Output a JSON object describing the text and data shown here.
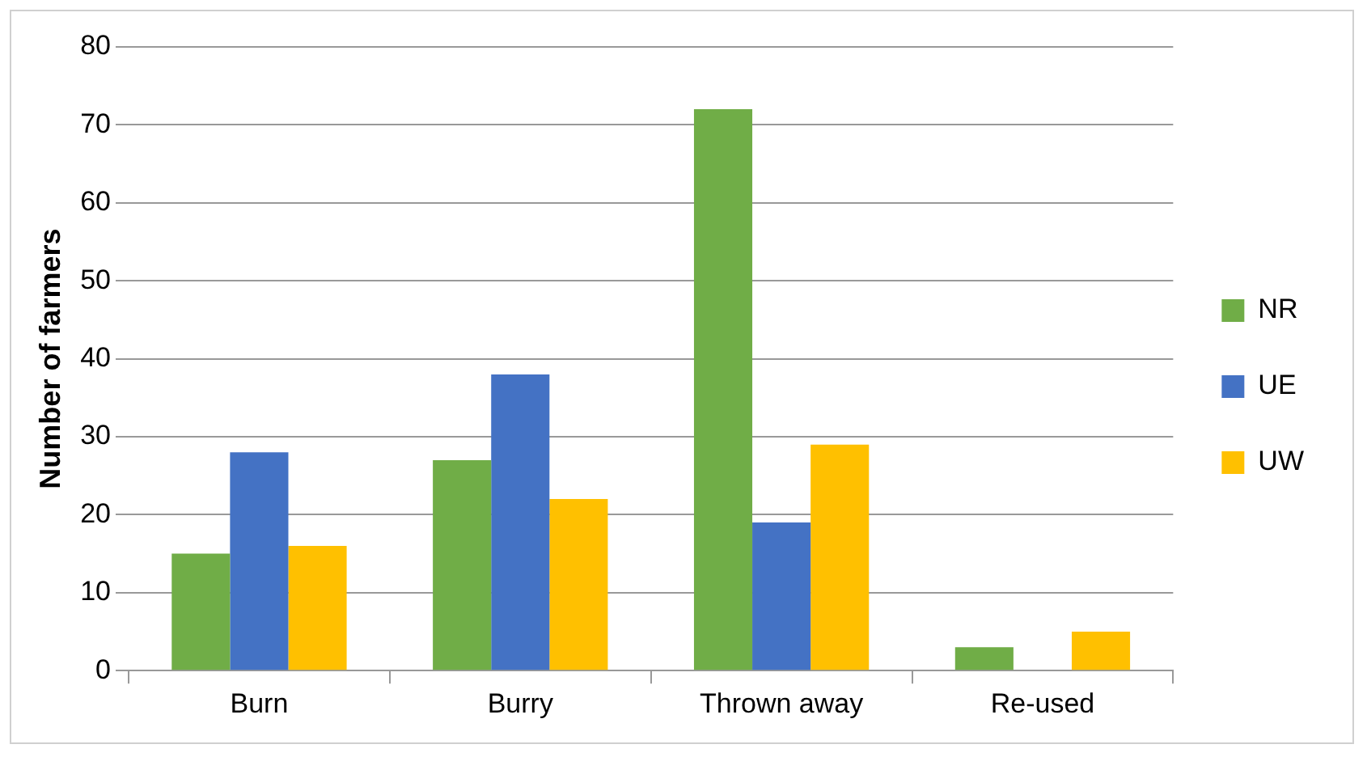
{
  "chart_data": {
    "type": "bar",
    "ylabel": "Number of farmers",
    "categories": [
      "Burn",
      "Burry",
      "Thrown away",
      "Re-used"
    ],
    "series": [
      {
        "name": "NR",
        "color": "#70ad47",
        "values": [
          15,
          27,
          72,
          3
        ]
      },
      {
        "name": "UE",
        "color": "#4472c4",
        "values": [
          28,
          38,
          19,
          0
        ]
      },
      {
        "name": "UW",
        "color": "#ffc000",
        "values": [
          16,
          22,
          29,
          5
        ]
      }
    ],
    "ylim": [
      0,
      80
    ],
    "yticks": [
      0,
      10,
      20,
      30,
      40,
      50,
      60,
      70,
      80
    ],
    "grid": "y",
    "legend": "right"
  }
}
